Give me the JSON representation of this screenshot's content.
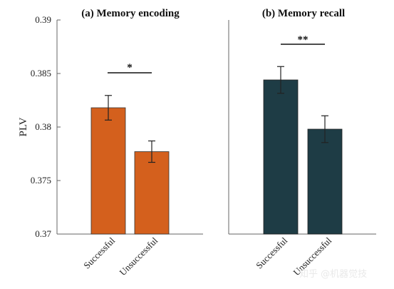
{
  "chart_data": [
    {
      "type": "bar",
      "title": "(a) Memory encoding",
      "ylabel": "PLV",
      "ylim": [
        0.37,
        0.39
      ],
      "yticks": [
        "0.37",
        "0.375",
        "0.38",
        "0.385",
        "0.39"
      ],
      "categories": [
        "Successful",
        "Unsuccessful"
      ],
      "values": [
        0.3818,
        0.3777
      ],
      "errors": [
        0.00115,
        0.001
      ],
      "color": "#d4601d",
      "significance": "*"
    },
    {
      "type": "bar",
      "title": "(b) Memory recall",
      "ylabel": "",
      "ylim": [
        0.37,
        0.39
      ],
      "categories": [
        "Successful",
        "Unsuccessful"
      ],
      "values": [
        0.3844,
        0.3798
      ],
      "errors": [
        0.00125,
        0.00125
      ],
      "color": "#1e3c45",
      "significance": "**"
    }
  ],
  "watermark": "知乎 @机器觉技"
}
